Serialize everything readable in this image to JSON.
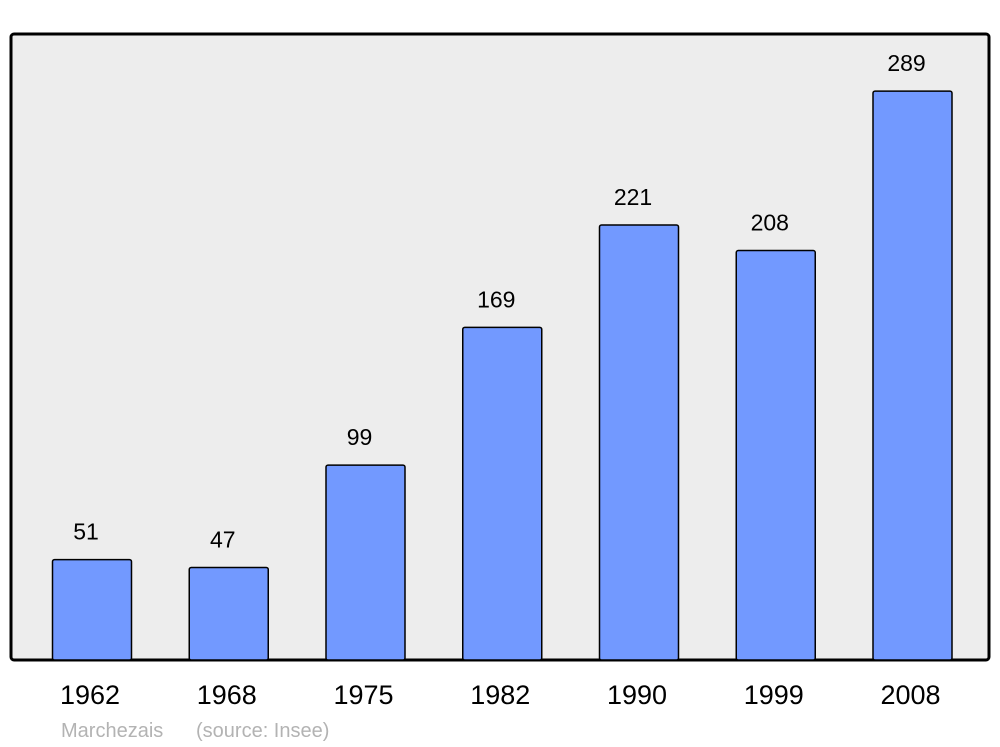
{
  "chart_data": {
    "type": "bar",
    "categories": [
      "1962",
      "1968",
      "1975",
      "1982",
      "1990",
      "1999",
      "2008"
    ],
    "values": [
      51,
      47,
      99,
      169,
      221,
      208,
      289
    ],
    "title": "",
    "xlabel": "",
    "ylabel": "",
    "ylim": [
      0,
      318
    ],
    "grid": false,
    "data_labels": true,
    "colors": {
      "bar": "#7299ff",
      "bar_stroke": "#000000",
      "plot_background": "#ededed",
      "source_text": "#b3b3b3"
    },
    "caption": {
      "place": "Marchezais",
      "source": "(source: Insee)"
    }
  }
}
